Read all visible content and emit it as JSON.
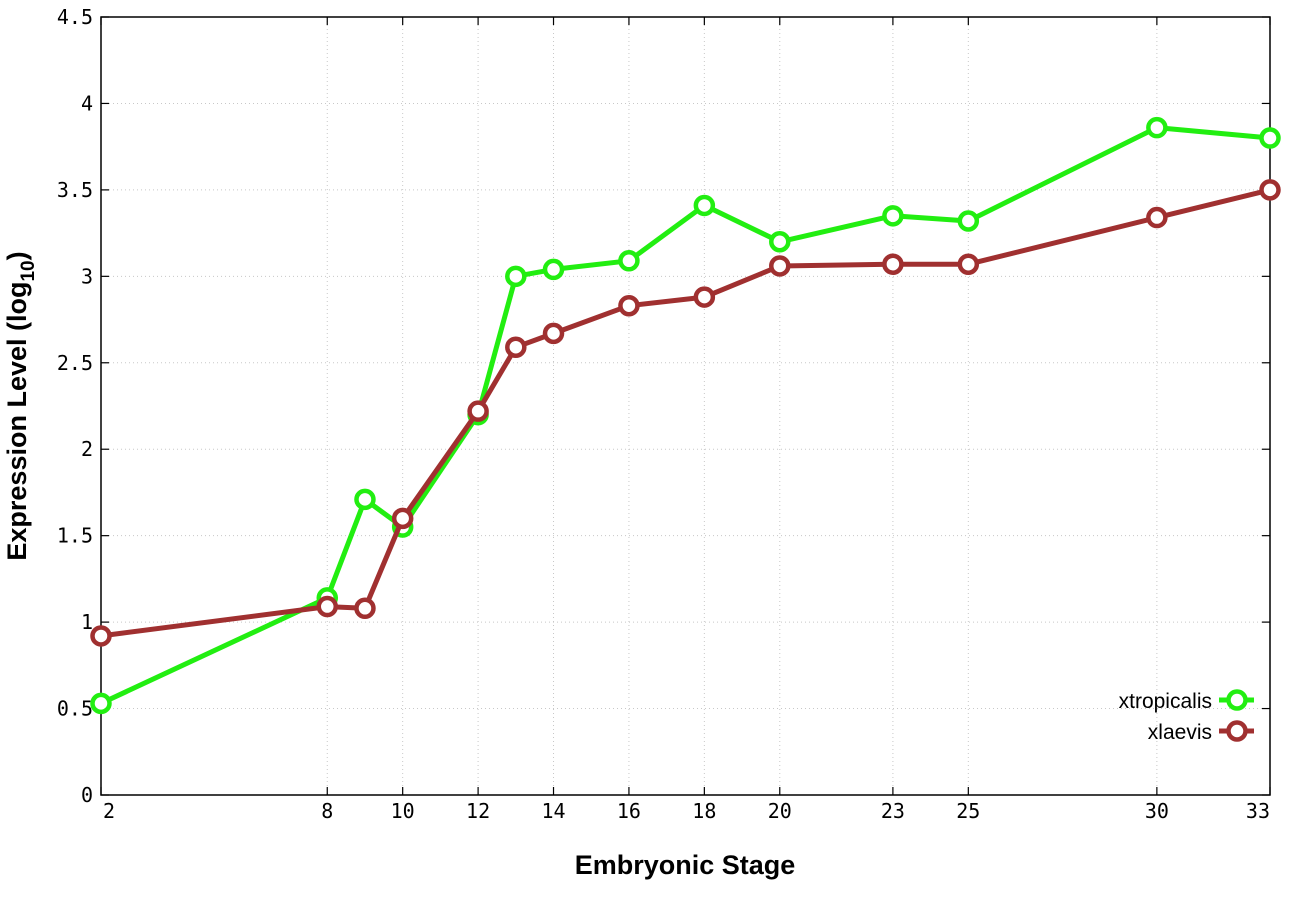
{
  "chart_data": {
    "type": "line",
    "xlabel": "Embryonic Stage",
    "ylabel_main": "Expression Level (log",
    "ylabel_sub": "10",
    "ylabel_close": ")",
    "xlim": [
      2,
      33
    ],
    "ylim": [
      0,
      4.5
    ],
    "grid": true,
    "legend_position": "bottom-right",
    "x_ticks": [
      2,
      8,
      10,
      12,
      14,
      16,
      18,
      20,
      23,
      25,
      30,
      33
    ],
    "y_ticks": [
      {
        "value": 0,
        "label": "0"
      },
      {
        "value": 0.5,
        "label": "0.5"
      },
      {
        "value": 1,
        "label": "1"
      },
      {
        "value": 1.5,
        "label": "1.5"
      },
      {
        "value": 2,
        "label": "2"
      },
      {
        "value": 2.5,
        "label": "2.5"
      },
      {
        "value": 3,
        "label": "3"
      },
      {
        "value": 3.5,
        "label": "3.5"
      },
      {
        "value": 4,
        "label": "4"
      },
      {
        "value": 4.5,
        "label": "4.5"
      }
    ],
    "series": [
      {
        "name": "xtropicalis",
        "color": "#22ee11",
        "x": [
          2,
          8,
          9,
          10,
          12,
          13,
          14,
          16,
          18,
          20,
          23,
          25,
          30,
          33
        ],
        "y": [
          0.53,
          1.14,
          1.71,
          1.55,
          2.2,
          3.0,
          3.04,
          3.09,
          3.41,
          3.2,
          3.35,
          3.32,
          3.86,
          3.8
        ]
      },
      {
        "name": "xlaevis",
        "color": "#a03030",
        "x": [
          2,
          8,
          9,
          10,
          12,
          13,
          14,
          16,
          18,
          20,
          23,
          25,
          30,
          33
        ],
        "y": [
          0.92,
          1.09,
          1.08,
          1.6,
          2.22,
          2.59,
          2.67,
          2.83,
          2.88,
          3.06,
          3.07,
          3.07,
          3.34,
          3.5
        ]
      }
    ]
  }
}
